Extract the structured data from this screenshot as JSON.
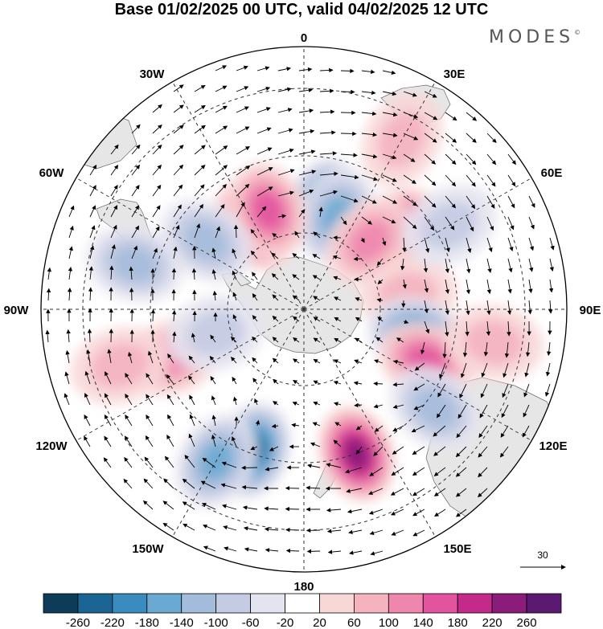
{
  "title": "Base 01/02/2025 00 UTC, valid 04/02/2025 12 UTC",
  "brand": "MODES",
  "brand_mark": "©",
  "longitude_labels": {
    "lon_0": "0",
    "lon_30e": "30E",
    "lon_60e": "60E",
    "lon_90e": "90E",
    "lon_120e": "120E",
    "lon_150e": "150E",
    "lon_180": "180",
    "lon_150w": "150W",
    "lon_120w": "120W",
    "lon_90w": "90W",
    "lon_60w": "60W",
    "lon_30w": "30W"
  },
  "reference_vector_label": "30",
  "colorbar": {
    "colors": [
      "#0d3b58",
      "#1a6594",
      "#3a8cbf",
      "#6aaad2",
      "#a4bcdc",
      "#c4cbe3",
      "#e4e4f0",
      "#ffffff",
      "#f8d7d7",
      "#f4b3bf",
      "#ee86ae",
      "#e2549e",
      "#c42a8a",
      "#8c1c7a",
      "#5a1a72"
    ],
    "labels": [
      "-260",
      "-220",
      "-180",
      "-140",
      "-100",
      "-60",
      "-20",
      "20",
      "60",
      "100",
      "140",
      "180",
      "220",
      "260"
    ]
  },
  "anomalies": [
    {
      "lat": -60,
      "lon": 12,
      "value": -220
    },
    {
      "lat": -62,
      "lon": 20,
      "value": -140
    },
    {
      "lat": -55,
      "lon": 50,
      "value": 200
    },
    {
      "lat": -63,
      "lon": 44,
      "value": 100
    },
    {
      "lat": -62,
      "lon": -30,
      "value": 180
    },
    {
      "lat": -60,
      "lon": -20,
      "value": 140
    },
    {
      "lat": -56,
      "lon": -55,
      "value": -100
    },
    {
      "lat": -40,
      "lon": -75,
      "value": -100
    },
    {
      "lat": -60,
      "lon": 82,
      "value": 80
    },
    {
      "lat": -57,
      "lon": 103,
      "value": -180
    },
    {
      "lat": -52,
      "lon": 113,
      "value": 150
    },
    {
      "lat": -43,
      "lon": 127,
      "value": -120
    },
    {
      "lat": -46,
      "lon": 160,
      "value": 240
    },
    {
      "lat": -47,
      "lon": -160,
      "value": -220
    },
    {
      "lat": -40,
      "lon": -150,
      "value": -140
    },
    {
      "lat": -50,
      "lon": -110,
      "value": 100
    },
    {
      "lat": -35,
      "lon": -107,
      "value": 80
    },
    {
      "lat": -64,
      "lon": -105,
      "value": -60
    },
    {
      "lat": -42,
      "lon": 60,
      "value": -60
    },
    {
      "lat": -35,
      "lon": 100,
      "value": 60
    },
    {
      "lat": -34,
      "lon": 30,
      "value": 80
    }
  ]
}
